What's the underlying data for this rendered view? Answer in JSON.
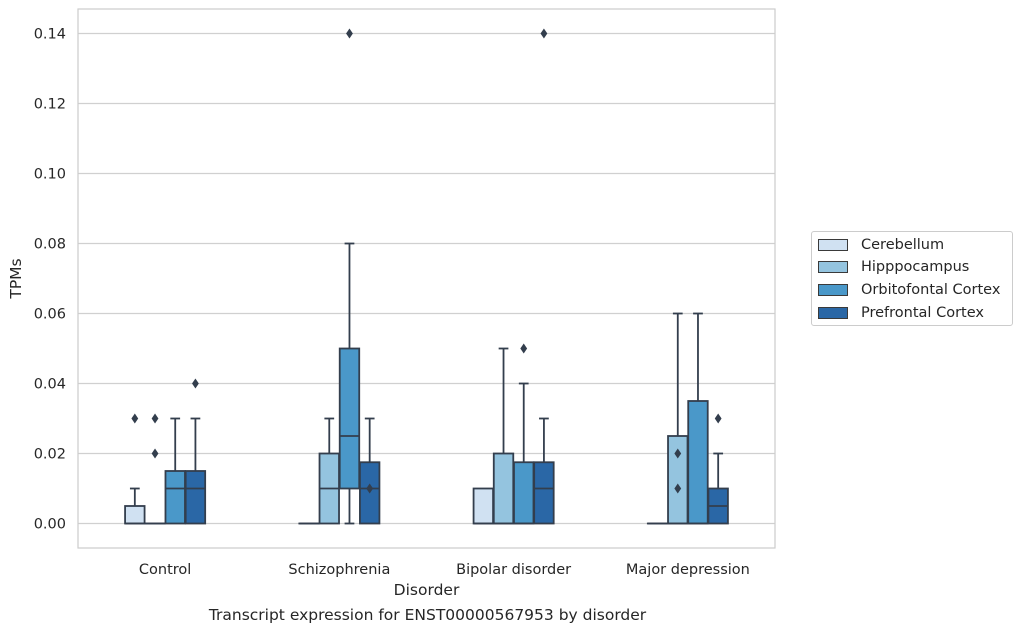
{
  "caption": "Transcript expression for ENST00000567953 by disorder",
  "colors": {
    "Cerebellum": "#d0e1f2",
    "Hipppocampus": "#94c4df",
    "Orbitofontal Cortex": "#4a98c9",
    "Prefrontal Cortex": "#2a67a6",
    "edge": "#333e4d",
    "grid": "#d0d0d0"
  },
  "chart_data": {
    "type": "box",
    "xlabel": "Disorder",
    "ylabel": "TPMs",
    "categories": [
      "Control",
      "Schizophrenia",
      "Bipolar disorder",
      "Major depression"
    ],
    "ylim": [
      -0.007,
      0.147
    ],
    "yticks": [
      "0.00",
      "0.02",
      "0.04",
      "0.06",
      "0.08",
      "0.10",
      "0.12",
      "0.14"
    ],
    "grid": true,
    "legend_position": "right",
    "series": [
      {
        "name": "Cerebellum",
        "boxes": [
          {
            "category": "Control",
            "q1": 0.0,
            "median": 0.0,
            "q3": 0.005,
            "whisker_low": 0.0,
            "whisker_high": 0.01,
            "outliers": [
              0.03
            ]
          },
          {
            "category": "Schizophrenia",
            "q1": 0.0,
            "median": 0.0,
            "q3": 0.0,
            "whisker_low": 0.0,
            "whisker_high": 0.0,
            "outliers": []
          },
          {
            "category": "Bipolar disorder",
            "q1": 0.0,
            "median": 0.0,
            "q3": 0.01,
            "whisker_low": 0.0,
            "whisker_high": 0.01,
            "outliers": []
          },
          {
            "category": "Major depression",
            "q1": 0.0,
            "median": 0.0,
            "q3": 0.0,
            "whisker_low": 0.0,
            "whisker_high": 0.0,
            "outliers": []
          }
        ]
      },
      {
        "name": "Hipppocampus",
        "boxes": [
          {
            "category": "Control",
            "q1": 0.0,
            "median": 0.0,
            "q3": 0.0,
            "whisker_low": 0.0,
            "whisker_high": 0.0,
            "outliers": [
              0.02,
              0.03
            ]
          },
          {
            "category": "Schizophrenia",
            "q1": 0.0,
            "median": 0.01,
            "q3": 0.02,
            "whisker_low": 0.0,
            "whisker_high": 0.03,
            "outliers": []
          },
          {
            "category": "Bipolar disorder",
            "q1": 0.0,
            "median": 0.0,
            "q3": 0.02,
            "whisker_low": 0.0,
            "whisker_high": 0.05,
            "outliers": []
          },
          {
            "category": "Major depression",
            "q1": 0.0,
            "median": 0.0,
            "q3": 0.025,
            "whisker_low": 0.0,
            "whisker_high": 0.06,
            "outliers": [
              0.01,
              0.02
            ]
          }
        ]
      },
      {
        "name": "Orbitofontal Cortex",
        "boxes": [
          {
            "category": "Control",
            "q1": 0.0,
            "median": 0.01,
            "q3": 0.015,
            "whisker_low": 0.0,
            "whisker_high": 0.03,
            "outliers": []
          },
          {
            "category": "Schizophrenia",
            "q1": 0.01,
            "median": 0.025,
            "q3": 0.05,
            "whisker_low": 0.0,
            "whisker_high": 0.08,
            "outliers": [
              0.14
            ]
          },
          {
            "category": "Bipolar disorder",
            "q1": 0.0,
            "median": 0.0,
            "q3": 0.0175,
            "whisker_low": 0.0,
            "whisker_high": 0.04,
            "outliers": [
              0.05
            ]
          },
          {
            "category": "Major depression",
            "q1": 0.0,
            "median": 0.0,
            "q3": 0.035,
            "whisker_low": 0.0,
            "whisker_high": 0.06,
            "outliers": []
          }
        ]
      },
      {
        "name": "Prefrontal Cortex",
        "boxes": [
          {
            "category": "Control",
            "q1": 0.0,
            "median": 0.01,
            "q3": 0.015,
            "whisker_low": 0.0,
            "whisker_high": 0.03,
            "outliers": [
              0.04
            ]
          },
          {
            "category": "Schizophrenia",
            "q1": 0.0,
            "median": 0.01,
            "q3": 0.0175,
            "whisker_low": 0.0,
            "whisker_high": 0.03,
            "outliers": [
              0.01
            ]
          },
          {
            "category": "Bipolar disorder",
            "q1": 0.0,
            "median": 0.01,
            "q3": 0.0175,
            "whisker_low": 0.0,
            "whisker_high": 0.03,
            "outliers": [
              0.14
            ]
          },
          {
            "category": "Major depression",
            "q1": 0.0,
            "median": 0.005,
            "q3": 0.01,
            "whisker_low": 0.0,
            "whisker_high": 0.02,
            "outliers": [
              0.03
            ]
          }
        ]
      }
    ]
  }
}
